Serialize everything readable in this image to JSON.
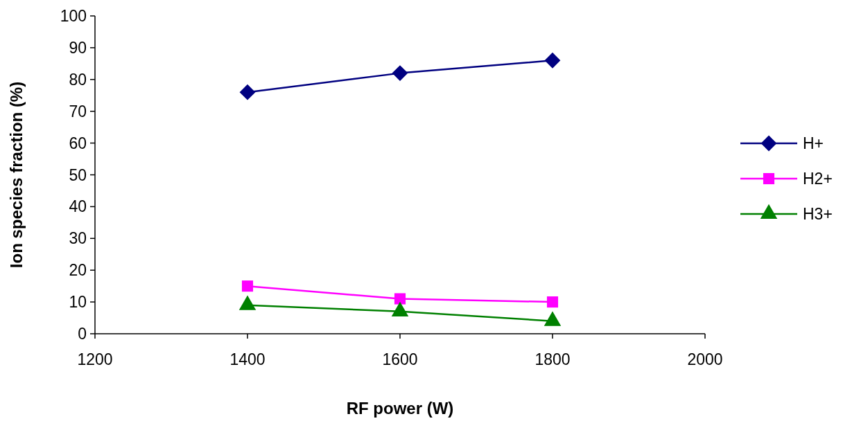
{
  "chart_data": {
    "type": "line",
    "xlabel": "RF power (W)",
    "ylabel": "Ion species fraction (%)",
    "x": [
      1400,
      1600,
      1800
    ],
    "series": [
      {
        "name": "H+",
        "color": "#000080",
        "values": [
          76,
          82,
          86
        ],
        "marker": "diamond"
      },
      {
        "name": "H2+",
        "color": "#ff00ff",
        "values": [
          15,
          11,
          10
        ],
        "marker": "square"
      },
      {
        "name": "H3+",
        "color": "#008000",
        "values": [
          9,
          7,
          4
        ],
        "marker": "triangle"
      }
    ],
    "xlim": [
      1200,
      2000
    ],
    "xticks": [
      1200,
      1400,
      1600,
      1800,
      2000
    ],
    "ylim": [
      0,
      100
    ],
    "yticks": [
      0,
      10,
      20,
      30,
      40,
      50,
      60,
      70,
      80,
      90,
      100
    ],
    "grid": false,
    "legend": "right",
    "line_style": "solid"
  }
}
